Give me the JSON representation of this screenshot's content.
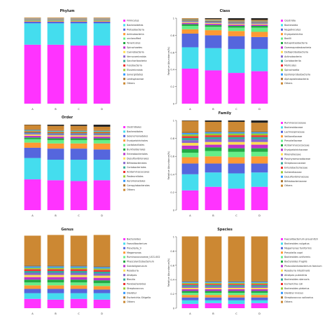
{
  "figure": {
    "panels": [
      {
        "title": "Phylum",
        "ylabel": "",
        "categories": [
          "A",
          "B",
          "C",
          "D"
        ]
      },
      {
        "title": "Class",
        "ylabel": "Relative Abundance(%)",
        "categories": [
          "A",
          "B",
          "C",
          "D"
        ]
      },
      {
        "title": "Order",
        "ylabel": "",
        "categories": [
          "A",
          "B",
          "C",
          "D"
        ]
      },
      {
        "title": "Family",
        "ylabel": "Relative Abundance(%)",
        "categories": [
          "A",
          "B",
          "C",
          "D"
        ]
      },
      {
        "title": "Genus",
        "ylabel": "",
        "categories": [
          "A",
          "B",
          "C",
          "D"
        ]
      },
      {
        "title": "Species",
        "ylabel": "Relative Abundance(%)",
        "categories": [
          "A",
          "B",
          "C",
          "D"
        ]
      }
    ]
  },
  "palette": [
    "#FF33FF",
    "#44DDEE",
    "#5566DD",
    "#FF9933",
    "#66EE88",
    "#22AA44",
    "#BB33CC",
    "#FFDD55",
    "#8866CC",
    "#33AA99",
    "#EE3333",
    "#99CC33",
    "#3399FF",
    "#AA7733",
    "#CC8833",
    "#4455AA",
    "#DD66AA",
    "#66CC66",
    "#2288CC",
    "#99AA44",
    "#BB5577",
    "#77BBEE",
    "#DDAA22",
    "#555555",
    "#117777",
    "#CC4400",
    "#88DD44",
    "#9999FF",
    "#EE88CC",
    "#444488"
  ],
  "chart_data": [
    {
      "type": "bar",
      "stacked": true,
      "title": "Phylum",
      "ylabel": "",
      "ylim": [
        0,
        1
      ],
      "categories": [
        "A",
        "B",
        "C",
        "D"
      ],
      "series": [
        {
          "name": "Firmicutes",
          "values": [
            0.69,
            0.69,
            0.68,
            0.68
          ]
        },
        {
          "name": "Bacteroidetes",
          "values": [
            0.25,
            0.25,
            0.26,
            0.26
          ]
        },
        {
          "name": "Proteobacteria",
          "values": [
            0.02,
            0.02,
            0.02,
            0.02
          ]
        },
        {
          "name": "Actinobacteria",
          "values": [
            0.01,
            0.01,
            0.01,
            0.01
          ]
        },
        {
          "name": "unclassified",
          "values": [
            0.005,
            0.005,
            0.005,
            0.005
          ]
        },
        {
          "name": "Tenericutes",
          "values": [
            0.005,
            0.005,
            0.005,
            0.005
          ]
        },
        {
          "name": "Spirochaetes",
          "values": [
            0.004,
            0.004,
            0.004,
            0.004
          ]
        },
        {
          "name": "Cyanobacteria",
          "values": [
            0.004,
            0.004,
            0.004,
            0.004
          ]
        },
        {
          "name": "Verrucomicrobia",
          "values": [
            0.003,
            0.003,
            0.003,
            0.003
          ]
        },
        {
          "name": "Saccharibacteria",
          "values": [
            0.003,
            0.003,
            0.003,
            0.003
          ]
        },
        {
          "name": "Fusobacteria",
          "values": [
            0.002,
            0.002,
            0.002,
            0.002
          ]
        },
        {
          "name": "Elusimicrobia",
          "values": [
            0.002,
            0.002,
            0.002,
            0.002
          ]
        },
        {
          "name": "Synergistetes",
          "values": [
            0.002,
            0.002,
            0.002,
            0.002
          ]
        },
        {
          "name": "Lentisphaerae",
          "values": [
            0.002,
            0.002,
            0.002,
            0.002
          ]
        },
        {
          "name": "Others",
          "values": [
            0.006,
            0.006,
            0.006,
            0.006
          ]
        }
      ]
    },
    {
      "type": "bar",
      "stacked": true,
      "title": "Class",
      "ylabel": "Relative Abundance(%)",
      "ylim": [
        0,
        1
      ],
      "categories": [
        "A",
        "B",
        "C",
        "D"
      ],
      "series": [
        {
          "name": "Clostridia",
          "values": [
            0.41,
            0.39,
            0.36,
            0.38
          ]
        },
        {
          "name": "Bacteroidia",
          "values": [
            0.25,
            0.26,
            0.28,
            0.26
          ]
        },
        {
          "name": "Negativicutes",
          "values": [
            0.16,
            0.15,
            0.15,
            0.14
          ]
        },
        {
          "name": "Erysipelotrichia",
          "values": [
            0.05,
            0.06,
            0.06,
            0.06
          ]
        },
        {
          "name": "Bacilli",
          "values": [
            0.04,
            0.04,
            0.04,
            0.05
          ]
        },
        {
          "name": "Betaproteobacteria",
          "values": [
            0.02,
            0.02,
            0.02,
            0.02
          ]
        },
        {
          "name": "Gammaproteobacteria",
          "values": [
            0.015,
            0.015,
            0.015,
            0.015
          ]
        },
        {
          "name": "Deltaproteobacteria",
          "values": [
            0.01,
            0.01,
            0.01,
            0.01
          ]
        },
        {
          "name": "Actinobacteria",
          "values": [
            0.01,
            0.01,
            0.01,
            0.01
          ]
        },
        {
          "name": "Coriobacteriia",
          "values": [
            0.008,
            0.008,
            0.008,
            0.008
          ]
        },
        {
          "name": "Mollicutes",
          "values": [
            0.006,
            0.006,
            0.006,
            0.006
          ]
        },
        {
          "name": "Spirochaetia",
          "values": [
            0.005,
            0.005,
            0.005,
            0.005
          ]
        },
        {
          "name": "Epsilonproteobacteria",
          "values": [
            0.004,
            0.004,
            0.004,
            0.004
          ]
        },
        {
          "name": "Alphaproteobacteria",
          "values": [
            0.004,
            0.004,
            0.004,
            0.004
          ]
        },
        {
          "name": "Others",
          "values": [
            0.008,
            0.008,
            0.008,
            0.008
          ]
        }
      ]
    },
    {
      "type": "bar",
      "stacked": true,
      "title": "Order",
      "ylabel": "",
      "ylim": [
        0,
        1
      ],
      "categories": [
        "A",
        "B",
        "C",
        "D"
      ],
      "series": [
        {
          "name": "Clostridiales",
          "values": [
            0.36,
            0.35,
            0.34,
            0.35
          ]
        },
        {
          "name": "Bacteroidales",
          "values": [
            0.25,
            0.24,
            0.25,
            0.24
          ]
        },
        {
          "name": "Selenomonadales",
          "values": [
            0.12,
            0.13,
            0.13,
            0.12
          ]
        },
        {
          "name": "Erysipelotrichales",
          "values": [
            0.06,
            0.06,
            0.06,
            0.07
          ]
        },
        {
          "name": "Lactobacillales",
          "values": [
            0.04,
            0.04,
            0.04,
            0.04
          ]
        },
        {
          "name": "Burkholderiales",
          "values": [
            0.02,
            0.02,
            0.02,
            0.02
          ]
        },
        {
          "name": "Enterobacteriales",
          "values": [
            0.02,
            0.02,
            0.02,
            0.02
          ]
        },
        {
          "name": "Desulfovibrionales",
          "values": [
            0.015,
            0.015,
            0.015,
            0.015
          ]
        },
        {
          "name": "Bifidobacteriales",
          "values": [
            0.015,
            0.015,
            0.015,
            0.015
          ]
        },
        {
          "name": "Coriobacteriales",
          "values": [
            0.01,
            0.01,
            0.01,
            0.01
          ]
        },
        {
          "name": "Acidaminococcales",
          "values": [
            0.01,
            0.01,
            0.01,
            0.01
          ]
        },
        {
          "name": "Pasteurellales",
          "values": [
            0.01,
            0.01,
            0.01,
            0.01
          ]
        },
        {
          "name": "Aeromonadales",
          "values": [
            0.008,
            0.008,
            0.008,
            0.008
          ]
        },
        {
          "name": "Campylobacterales",
          "values": [
            0.008,
            0.008,
            0.008,
            0.008
          ]
        },
        {
          "name": "Others",
          "values": [
            0.05,
            0.05,
            0.05,
            0.04
          ]
        }
      ]
    },
    {
      "type": "bar",
      "stacked": true,
      "title": "Family",
      "ylabel": "Relative Abundance(%)",
      "ylim": [
        0,
        1
      ],
      "categories": [
        "A",
        "B",
        "C",
        "D"
      ],
      "series": [
        {
          "name": "Ruminococcaceae",
          "values": [
            0.22,
            0.26,
            0.24,
            0.26
          ]
        },
        {
          "name": "Bacteroidaceae",
          "values": [
            0.18,
            0.16,
            0.17,
            0.16
          ]
        },
        {
          "name": "Lachnospiraceae",
          "values": [
            0.12,
            0.1,
            0.11,
            0.1
          ]
        },
        {
          "name": "Veillonellaceae",
          "values": [
            0.07,
            0.08,
            0.07,
            0.08
          ]
        },
        {
          "name": "Prevotellaceae",
          "values": [
            0.05,
            0.06,
            0.06,
            0.05
          ]
        },
        {
          "name": "Acidaminococcaceae",
          "values": [
            0.04,
            0.04,
            0.04,
            0.04
          ]
        },
        {
          "name": "Erysipelotrichaceae",
          "values": [
            0.04,
            0.03,
            0.04,
            0.04
          ]
        },
        {
          "name": "Rikenellaceae",
          "values": [
            0.03,
            0.03,
            0.03,
            0.03
          ]
        },
        {
          "name": "Porphyromonadaceae",
          "values": [
            0.03,
            0.03,
            0.03,
            0.03
          ]
        },
        {
          "name": "Streptococcaceae",
          "values": [
            0.025,
            0.025,
            0.025,
            0.025
          ]
        },
        {
          "name": "Enterobacteriaceae",
          "values": [
            0.02,
            0.02,
            0.02,
            0.02
          ]
        },
        {
          "name": "Sutterellaceae",
          "values": [
            0.02,
            0.02,
            0.02,
            0.02
          ]
        },
        {
          "name": "Desulfovibrionaceae",
          "values": [
            0.015,
            0.015,
            0.015,
            0.015
          ]
        },
        {
          "name": "Bifidobacteriaceae",
          "values": [
            0.015,
            0.015,
            0.015,
            0.015
          ]
        },
        {
          "name": "Others",
          "values": [
            0.12,
            0.1,
            0.1,
            0.09
          ]
        }
      ]
    },
    {
      "type": "bar",
      "stacked": true,
      "title": "Genus",
      "ylabel": "",
      "ylim": [
        0,
        1
      ],
      "categories": [
        "A",
        "B",
        "C",
        "D"
      ],
      "series": [
        {
          "name": "Bacteroides",
          "values": [
            0.13,
            0.12,
            0.13,
            0.12
          ]
        },
        {
          "name": "Faecalibacterium",
          "values": [
            0.08,
            0.09,
            0.08,
            0.09
          ]
        },
        {
          "name": "Prevotella_9",
          "values": [
            0.06,
            0.06,
            0.06,
            0.05
          ]
        },
        {
          "name": "Megamonas",
          "values": [
            0.05,
            0.05,
            0.05,
            0.05
          ]
        },
        {
          "name": "Ruminococcaceae_UCG-002",
          "values": [
            0.04,
            0.04,
            0.04,
            0.04
          ]
        },
        {
          "name": "Phascolarctobacterium",
          "values": [
            0.04,
            0.04,
            0.04,
            0.04
          ]
        },
        {
          "name": "Subdoligranulum",
          "values": [
            0.035,
            0.035,
            0.035,
            0.035
          ]
        },
        {
          "name": "Roseburia",
          "values": [
            0.03,
            0.03,
            0.03,
            0.03
          ]
        },
        {
          "name": "Alistipes",
          "values": [
            0.03,
            0.03,
            0.03,
            0.03
          ]
        },
        {
          "name": "Blautia",
          "values": [
            0.025,
            0.025,
            0.025,
            0.025
          ]
        },
        {
          "name": "Parabacteroides",
          "values": [
            0.025,
            0.025,
            0.025,
            0.025
          ]
        },
        {
          "name": "Streptococcus",
          "values": [
            0.02,
            0.02,
            0.02,
            0.02
          ]
        },
        {
          "name": "Dialister",
          "values": [
            0.02,
            0.02,
            0.02,
            0.02
          ]
        },
        {
          "name": "Escherichia-Shigella",
          "values": [
            0.02,
            0.02,
            0.02,
            0.02
          ]
        },
        {
          "name": "Others",
          "values": [
            0.41,
            0.42,
            0.41,
            0.43
          ]
        }
      ]
    },
    {
      "type": "bar",
      "stacked": true,
      "title": "Species",
      "ylabel": "Relative Abundance(%)",
      "ylim": [
        0,
        1
      ],
      "categories": [
        "A",
        "B",
        "C",
        "D"
      ],
      "series": [
        {
          "name": "Faecalibacterium prausnitzii",
          "values": [
            0.06,
            0.07,
            0.06,
            0.07
          ]
        },
        {
          "name": "Bacteroides vulgatus",
          "values": [
            0.05,
            0.04,
            0.05,
            0.04
          ]
        },
        {
          "name": "Megamonas funiformis",
          "values": [
            0.04,
            0.04,
            0.04,
            0.04
          ]
        },
        {
          "name": "Prevotella copri",
          "values": [
            0.035,
            0.035,
            0.035,
            0.035
          ]
        },
        {
          "name": "Bacteroides uniformis",
          "values": [
            0.03,
            0.03,
            0.03,
            0.03
          ]
        },
        {
          "name": "Bacteroides fragilis",
          "values": [
            0.025,
            0.025,
            0.025,
            0.025
          ]
        },
        {
          "name": "Phascolarctobacterium faecium",
          "values": [
            0.025,
            0.025,
            0.025,
            0.025
          ]
        },
        {
          "name": "Roseburia intestinalis",
          "values": [
            0.02,
            0.02,
            0.02,
            0.02
          ]
        },
        {
          "name": "Alistipes putredinis",
          "values": [
            0.02,
            0.02,
            0.02,
            0.02
          ]
        },
        {
          "name": "Bacteroides stercoris",
          "values": [
            0.02,
            0.02,
            0.02,
            0.02
          ]
        },
        {
          "name": "Escherichia coli",
          "values": [
            0.015,
            0.015,
            0.015,
            0.015
          ]
        },
        {
          "name": "Bacteroides plebeius",
          "values": [
            0.015,
            0.015,
            0.015,
            0.015
          ]
        },
        {
          "name": "Dialister invisus",
          "values": [
            0.015,
            0.015,
            0.015,
            0.015
          ]
        },
        {
          "name": "Streptococcus salivarius",
          "values": [
            0.015,
            0.015,
            0.015,
            0.015
          ]
        },
        {
          "name": "Others",
          "values": [
            0.62,
            0.62,
            0.62,
            0.62
          ]
        }
      ]
    }
  ]
}
